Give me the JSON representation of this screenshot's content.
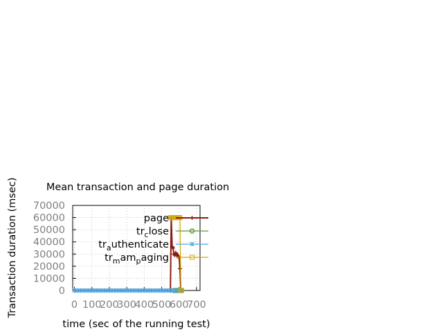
{
  "chart_data": {
    "type": "line",
    "title": "Mean transaction and page duration",
    "xlabel": "time (sec of the running test)",
    "ylabel": "Transaction duration (msec)",
    "xlim": [
      -10,
      720
    ],
    "ylim": [
      0,
      70000
    ],
    "x_ticks": [
      "0",
      "100",
      "200",
      "300",
      "400",
      "500",
      "600",
      "700"
    ],
    "x_tick_values": [
      0,
      100,
      200,
      300,
      400,
      500,
      600,
      700
    ],
    "y_ticks": [
      "0",
      "10000",
      "20000",
      "30000",
      "40000",
      "50000",
      "60000",
      "70000"
    ],
    "y_tick_values": [
      0,
      10000,
      20000,
      30000,
      40000,
      50000,
      60000,
      70000
    ],
    "grid": true,
    "legend_position": "top-right",
    "series": [
      {
        "name": "page",
        "legend_main": "page",
        "color": "#8b1a0e",
        "marker": "plus",
        "points": [
          [
            0,
            0
          ],
          [
            550,
            0
          ],
          [
            555,
            60000
          ],
          [
            560,
            36000
          ],
          [
            565,
            35000
          ],
          [
            570,
            30000
          ],
          [
            575,
            29000
          ],
          [
            580,
            31000
          ],
          [
            585,
            30000
          ],
          [
            590,
            29000
          ],
          [
            595,
            28000
          ],
          [
            600,
            27000
          ],
          [
            605,
            18000
          ],
          [
            610,
            0
          ],
          [
            615,
            0
          ]
        ]
      },
      {
        "name": "tr_close",
        "legend_main": "tr",
        "legend_sub": "c",
        "legend_rest": "lose",
        "color": "#5e9c36",
        "marker": "circle",
        "points": [
          [
            570,
            0
          ],
          [
            580,
            0
          ],
          [
            590,
            0
          ],
          [
            600,
            0
          ],
          [
            610,
            0
          ],
          [
            615,
            0
          ]
        ]
      },
      {
        "name": "tr_authenticate",
        "legend_main": "tr",
        "legend_sub": "a",
        "legend_rest": "uthenticate",
        "color": "#4da6e0",
        "marker": "star",
        "points": [
          [
            0,
            0
          ],
          [
            15,
            0
          ],
          [
            30,
            0
          ],
          [
            45,
            0
          ],
          [
            60,
            0
          ],
          [
            75,
            0
          ],
          [
            90,
            0
          ],
          [
            105,
            0
          ],
          [
            120,
            0
          ],
          [
            135,
            0
          ],
          [
            150,
            0
          ],
          [
            165,
            0
          ],
          [
            180,
            0
          ],
          [
            195,
            0
          ],
          [
            210,
            0
          ],
          [
            225,
            0
          ],
          [
            240,
            0
          ],
          [
            255,
            0
          ],
          [
            270,
            0
          ],
          [
            285,
            0
          ],
          [
            300,
            0
          ],
          [
            315,
            0
          ],
          [
            330,
            0
          ],
          [
            345,
            0
          ],
          [
            360,
            0
          ],
          [
            375,
            0
          ],
          [
            390,
            0
          ],
          [
            405,
            0
          ],
          [
            420,
            0
          ],
          [
            435,
            0
          ],
          [
            450,
            0
          ],
          [
            465,
            0
          ],
          [
            480,
            0
          ],
          [
            495,
            0
          ],
          [
            510,
            0
          ],
          [
            525,
            0
          ],
          [
            540,
            0
          ],
          [
            555,
            0
          ],
          [
            570,
            0
          ],
          [
            585,
            0
          ],
          [
            600,
            0
          ],
          [
            612,
            0
          ]
        ]
      },
      {
        "name": "tr_mam_paging",
        "legend_main": "tr",
        "legend_sub": "m",
        "legend_rest": "am",
        "legend_sub2": "p",
        "legend_rest2": "aging",
        "color": "#d4a800",
        "marker": "square",
        "points": [
          [
            550,
            60000
          ],
          [
            555,
            60000
          ],
          [
            560,
            60000
          ],
          [
            565,
            60000
          ],
          [
            570,
            60000
          ],
          [
            575,
            60000
          ],
          [
            580,
            60000
          ],
          [
            585,
            60000
          ],
          [
            590,
            60000
          ],
          [
            595,
            60000
          ],
          [
            600,
            60000
          ],
          [
            605,
            60000
          ],
          [
            610,
            0
          ],
          [
            615,
            0
          ]
        ]
      }
    ]
  }
}
